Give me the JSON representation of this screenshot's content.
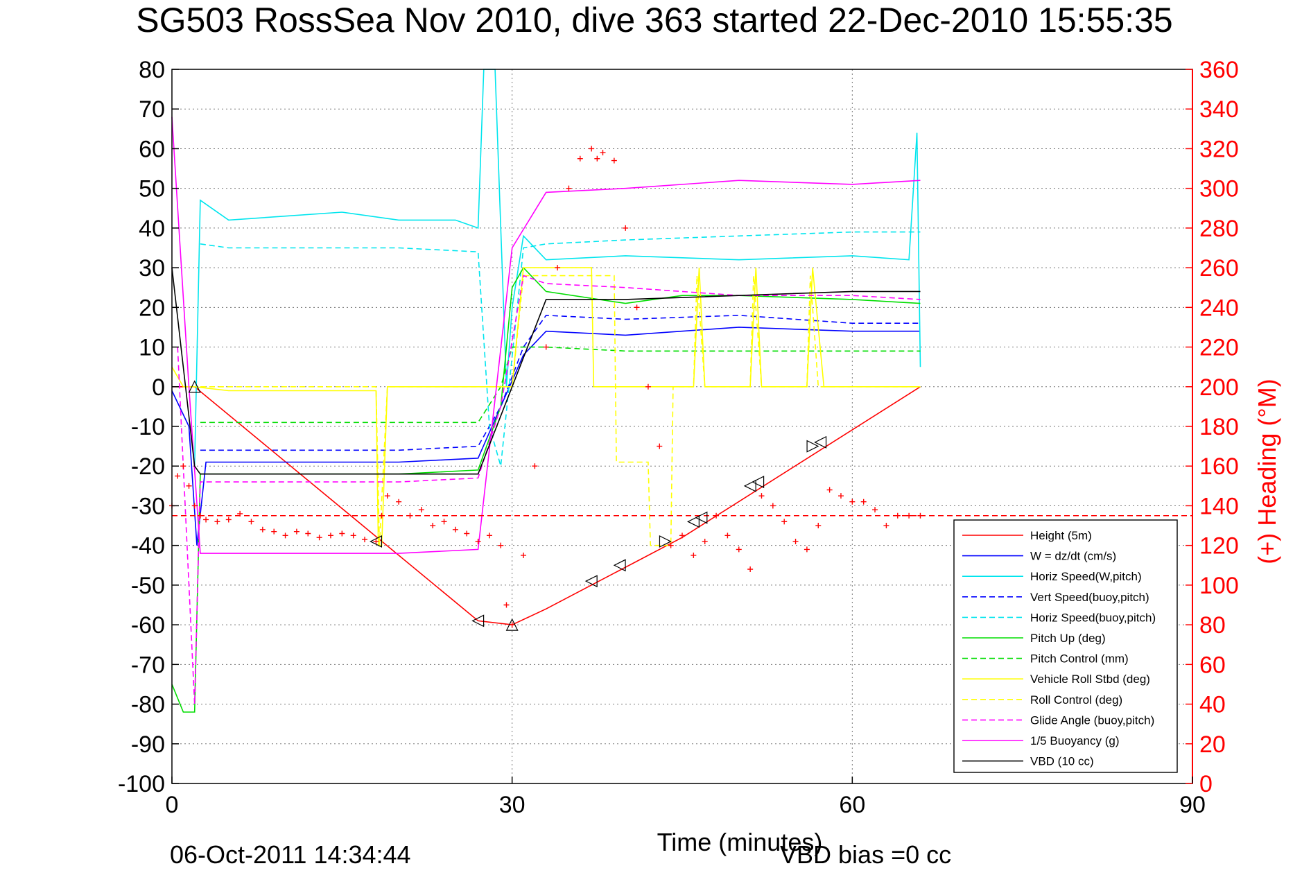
{
  "chart_data": {
    "type": "line",
    "title": "SG503 RossSea Nov 2010, dive 363 started 22-Dec-2010 15:55:35",
    "xlabel": "Time (minutes)",
    "ylabel_right": "(+) Heading (°M)",
    "xlim": [
      0,
      90
    ],
    "ylim_left": [
      -100,
      80
    ],
    "ylim_right": [
      0,
      360
    ],
    "xticks": [
      "0",
      "30",
      "60",
      "90"
    ],
    "yticks_left": [
      "80",
      "70",
      "60",
      "50",
      "40",
      "30",
      "20",
      "10",
      "0",
      "-10",
      "-20",
      "-30",
      "-40",
      "-50",
      "-60",
      "-70",
      "-80",
      "-90",
      "-100"
    ],
    "yticks_right": [
      "360",
      "340",
      "320",
      "300",
      "280",
      "260",
      "240",
      "220",
      "200",
      "180",
      "160",
      "140",
      "120",
      "100",
      "80",
      "60",
      "40",
      "20",
      "0"
    ],
    "grid": true,
    "legend_position": "bottom-right",
    "footer_date": "06-Oct-2011 14:34:44",
    "footer_bias": "VBD bias =0 cc",
    "colors": {
      "left_axis": "#000000",
      "right_axis": "#ff0000"
    },
    "legend": [
      {
        "name": "Height (5m)",
        "color": "#ff0000",
        "dash": false
      },
      {
        "name": "W = dz/dt (cm/s)",
        "color": "#0000ff",
        "dash": false
      },
      {
        "name": "Horiz Speed(W,pitch)",
        "color": "#00e5ee",
        "dash": false
      },
      {
        "name": "Vert Speed(buoy,pitch)",
        "color": "#0000ff",
        "dash": true
      },
      {
        "name": "Horiz Speed(buoy,pitch)",
        "color": "#00e5ee",
        "dash": true
      },
      {
        "name": "Pitch Up (deg)",
        "color": "#00dd00",
        "dash": false
      },
      {
        "name": "Pitch Control (mm)",
        "color": "#00dd00",
        "dash": true
      },
      {
        "name": "Vehicle Roll Stbd (deg)",
        "color": "#ffff00",
        "dash": false
      },
      {
        "name": "Roll Control (deg)",
        "color": "#ffff00",
        "dash": true
      },
      {
        "name": "Glide Angle (buoy,pitch)",
        "color": "#ff00ff",
        "dash": true
      },
      {
        "name": "1/5 Buoyancy (g)",
        "color": "#ff00ff",
        "dash": false
      },
      {
        "name": "VBD (10 cc)",
        "color": "#000000",
        "dash": false
      }
    ],
    "series": [
      {
        "key": "height",
        "color": "#ff0000",
        "dash": false,
        "x": [
          0,
          2,
          27,
          30,
          33,
          45,
          66
        ],
        "y": [
          0,
          0,
          -59,
          -60,
          -56,
          -38,
          0
        ]
      },
      {
        "key": "w",
        "color": "#0000ff",
        "dash": false,
        "x": [
          0,
          1.5,
          2.2,
          3,
          10,
          20,
          27,
          29,
          31,
          33,
          40,
          50,
          60,
          66
        ],
        "y": [
          -1,
          -10,
          -40,
          -19,
          -19,
          -19,
          -18,
          -5,
          8,
          14,
          13,
          15,
          14,
          14
        ]
      },
      {
        "key": "horiz_w",
        "color": "#00e5ee",
        "dash": false,
        "x": [
          2,
          2.5,
          5,
          10,
          15,
          20,
          25,
          27,
          27.5,
          28.5,
          29.5,
          30,
          31,
          33,
          40,
          50,
          60,
          65,
          65.7,
          66
        ],
        "y": [
          -20,
          47,
          42,
          43,
          44,
          42,
          42,
          40,
          80,
          80,
          0,
          20,
          38,
          32,
          33,
          32,
          33,
          32,
          64,
          5
        ]
      },
      {
        "key": "vert_buoy",
        "color": "#0000ff",
        "dash": true,
        "x": [
          2.5,
          5,
          10,
          20,
          27,
          29,
          31,
          33,
          40,
          50,
          60,
          66
        ],
        "y": [
          -16,
          -16,
          -16,
          -16,
          -15,
          -5,
          10,
          18,
          17,
          18,
          16,
          16
        ]
      },
      {
        "key": "horiz_buoy",
        "color": "#00e5ee",
        "dash": true,
        "x": [
          2.5,
          5,
          10,
          20,
          27,
          28,
          29,
          31,
          33,
          40,
          50,
          60,
          66
        ],
        "y": [
          36,
          35,
          35,
          35,
          34,
          -10,
          -20,
          35,
          36,
          37,
          38,
          39,
          39
        ]
      },
      {
        "key": "pitch_up",
        "color": "#00dd00",
        "dash": false,
        "x": [
          0,
          1,
          2,
          2.5,
          3,
          10,
          20,
          27,
          29,
          30,
          31,
          33,
          40,
          45,
          50,
          60,
          66
        ],
        "y": [
          -75,
          -82,
          -82,
          -22,
          -22,
          -22,
          -22,
          -21,
          -5,
          25,
          30,
          24,
          21,
          23,
          23,
          22,
          21
        ]
      },
      {
        "key": "pitch_ctrl",
        "color": "#00dd00",
        "dash": true,
        "x": [
          2.5,
          10,
          20,
          27,
          29,
          30,
          33,
          40,
          50,
          60,
          66
        ],
        "y": [
          -9,
          -9,
          -9,
          -9,
          0,
          10,
          10,
          9,
          9,
          9,
          9
        ]
      },
      {
        "key": "roll",
        "color": "#ffff00",
        "dash": false,
        "x": [
          0,
          1,
          2,
          5,
          10,
          18,
          18.2,
          18.5,
          19,
          25,
          27,
          30,
          31,
          33,
          37,
          37.2,
          40,
          43,
          43.3,
          45,
          46,
          46.5,
          47,
          51,
          51.5,
          52,
          56,
          56.5,
          57.5,
          60,
          66
        ],
        "y": [
          5,
          0,
          0,
          -1,
          -1,
          -1,
          -40,
          -40,
          0,
          0,
          0,
          0,
          30,
          30,
          30,
          0,
          0,
          0,
          0,
          0,
          0,
          30,
          0,
          0,
          30,
          0,
          0,
          30,
          0,
          0,
          0
        ]
      },
      {
        "key": "roll_ctrl",
        "color": "#ffff00",
        "dash": true,
        "x": [
          2.5,
          18,
          18.3,
          19,
          30,
          31,
          39,
          39.2,
          42,
          42.2,
          44,
          44.2,
          46,
          46.3,
          47,
          51,
          51.3,
          52,
          56,
          56.3,
          57,
          66
        ],
        "y": [
          0,
          0,
          -40,
          0,
          0,
          28,
          28,
          -19,
          -19,
          -40,
          -40,
          0,
          0,
          28,
          0,
          0,
          28,
          0,
          0,
          28,
          0,
          0
        ]
      },
      {
        "key": "glide",
        "color": "#ff00ff",
        "dash": true,
        "x": [
          0.5,
          2,
          2.5,
          10,
          20,
          27,
          29,
          31,
          33,
          40,
          50,
          60,
          66
        ],
        "y": [
          10,
          -80,
          -24,
          -24,
          -24,
          -23,
          -5,
          28,
          26,
          25,
          23,
          23,
          22
        ]
      },
      {
        "key": "buoyancy",
        "color": "#ff00ff",
        "dash": false,
        "x": [
          0,
          1.5,
          2.5,
          10,
          20,
          27,
          30,
          33,
          40,
          50,
          60,
          66
        ],
        "y": [
          68,
          0,
          -42,
          -42,
          -42,
          -41,
          35,
          49,
          50,
          52,
          51,
          52
        ]
      },
      {
        "key": "vbd",
        "color": "#000000",
        "dash": false,
        "x": [
          0,
          2,
          2.5,
          10,
          20,
          27,
          30,
          33,
          40,
          50,
          60,
          66
        ],
        "y": [
          30,
          -20,
          -22,
          -22,
          -22,
          -22,
          0,
          22,
          22,
          23,
          24,
          24
        ]
      }
    ],
    "heading": {
      "color": "#ff0000",
      "x": [
        0,
        0.5,
        1,
        1.5,
        2,
        2.5,
        3,
        4,
        5,
        6,
        7,
        8,
        9,
        10,
        11,
        12,
        13,
        14,
        15,
        16,
        17,
        18,
        18.5,
        19,
        20,
        21,
        22,
        23,
        24,
        25,
        26,
        27,
        28,
        29,
        29.5,
        30,
        31,
        32,
        33,
        34,
        35,
        36,
        37,
        37.5,
        38,
        39,
        40,
        41,
        42,
        43,
        44,
        45,
        46,
        47,
        48,
        49,
        50,
        51,
        52,
        53,
        54,
        55,
        56,
        57,
        58,
        59,
        60,
        61,
        62,
        63,
        64,
        65,
        66
      ],
      "y": [
        140,
        155,
        160,
        150,
        140,
        135,
        133,
        132,
        133,
        136,
        132,
        128,
        127,
        125,
        127,
        126,
        124,
        125,
        126,
        125,
        123,
        122,
        135,
        145,
        142,
        135,
        138,
        130,
        132,
        128,
        126,
        122,
        125,
        120,
        90,
        80,
        115,
        160,
        220,
        260,
        300,
        315,
        320,
        315,
        318,
        314,
        280,
        240,
        200,
        170,
        120,
        125,
        115,
        122,
        135,
        125,
        118,
        108,
        145,
        140,
        132,
        122,
        118,
        130,
        148,
        145,
        142,
        142,
        138,
        130,
        135,
        135,
        135
      ]
    },
    "heading_reference": 135,
    "markers": [
      {
        "x": 2,
        "y": 0,
        "type": "up"
      },
      {
        "x": 18,
        "y": -39,
        "type": "left"
      },
      {
        "x": 27,
        "y": -59,
        "type": "left"
      },
      {
        "x": 30,
        "y": -60,
        "type": "up"
      },
      {
        "x": 37,
        "y": -49,
        "type": "left"
      },
      {
        "x": 39.5,
        "y": -45,
        "type": "left"
      },
      {
        "x": 43.5,
        "y": -39,
        "type": "right"
      },
      {
        "x": 46,
        "y": -34,
        "type": "left"
      },
      {
        "x": 46.7,
        "y": -33,
        "type": "left"
      },
      {
        "x": 51,
        "y": -25,
        "type": "left"
      },
      {
        "x": 51.7,
        "y": -24,
        "type": "left"
      },
      {
        "x": 56.5,
        "y": -15,
        "type": "right"
      },
      {
        "x": 57.2,
        "y": -14,
        "type": "left"
      }
    ]
  }
}
